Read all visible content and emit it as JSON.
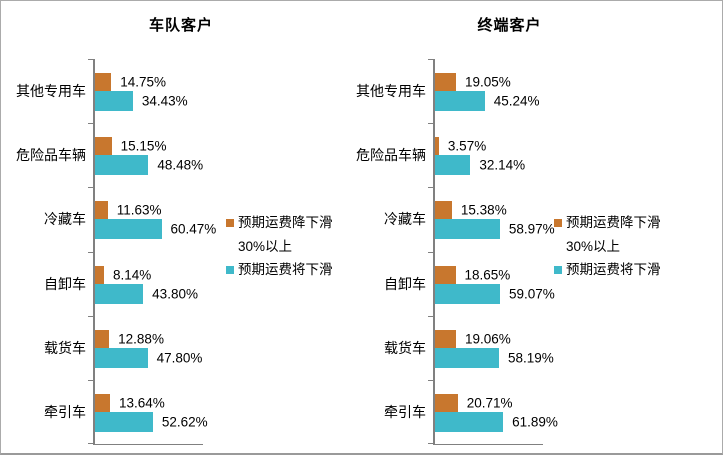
{
  "page": {
    "background": "#ffffff",
    "border_color": "#ababab"
  },
  "colors": {
    "series1_orange": "#c8772e",
    "series2_teal": "#3fb9ca",
    "axis_gray": "#808080",
    "text": "#000000"
  },
  "legend": {
    "series1_line1": "预期运费降下滑",
    "series1_line2": "30%以上",
    "series2": "预期运费将下滑"
  },
  "chart_data": [
    {
      "type": "bar",
      "orientation": "horizontal",
      "title": "车队客户",
      "categories": [
        "其他专用车",
        "危险品车辆",
        "冷藏车",
        "自卸车",
        "载货车",
        "牵引车"
      ],
      "series": [
        {
          "name": "预期运费降下滑30%以上",
          "color": "#c8772e",
          "values": [
            14.75,
            15.15,
            11.63,
            8.14,
            12.88,
            13.64
          ]
        },
        {
          "name": "预期运费将下滑",
          "color": "#3fb9ca",
          "values": [
            34.43,
            48.48,
            60.47,
            43.8,
            47.8,
            52.62
          ]
        }
      ],
      "value_label_format": "percent_2dp",
      "xlim": [
        0,
        100
      ],
      "grid": false,
      "legend_position": "right-middle"
    },
    {
      "type": "bar",
      "orientation": "horizontal",
      "title": "终端客户",
      "categories": [
        "其他专用车",
        "危险品车辆",
        "冷藏车",
        "自卸车",
        "载货车",
        "牵引车"
      ],
      "series": [
        {
          "name": "预期运费降下滑30%以上",
          "color": "#c8772e",
          "values": [
            19.05,
            3.57,
            15.38,
            18.65,
            19.06,
            20.71
          ]
        },
        {
          "name": "预期运费将下滑",
          "color": "#3fb9ca",
          "values": [
            45.24,
            32.14,
            58.97,
            59.07,
            58.19,
            61.89
          ]
        }
      ],
      "value_label_format": "percent_2dp",
      "xlim": [
        0,
        100
      ],
      "grid": false,
      "legend_position": "right-middle"
    }
  ]
}
